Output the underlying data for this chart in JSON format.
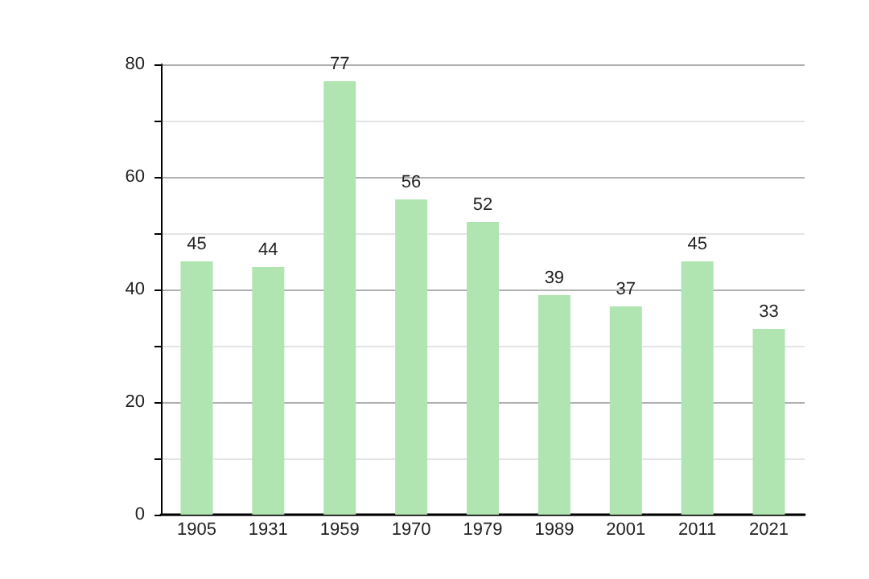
{
  "chart_data": {
    "type": "bar",
    "categories": [
      "1905",
      "1931",
      "1959",
      "1970",
      "1979",
      "1989",
      "2001",
      "2011",
      "2021"
    ],
    "values": [
      45,
      44,
      77,
      56,
      52,
      39,
      37,
      45,
      33
    ],
    "color": "#b0e4b0",
    "data_labels": true,
    "ylim": [
      0,
      80
    ],
    "yticks": [
      0,
      {
        "value": 10,
        "label": null
      },
      20,
      {
        "value": 30,
        "label": null
      },
      40,
      {
        "value": 50,
        "label": null
      },
      60,
      {
        "value": 70,
        "label": null
      },
      80
    ],
    "grid": "y"
  }
}
